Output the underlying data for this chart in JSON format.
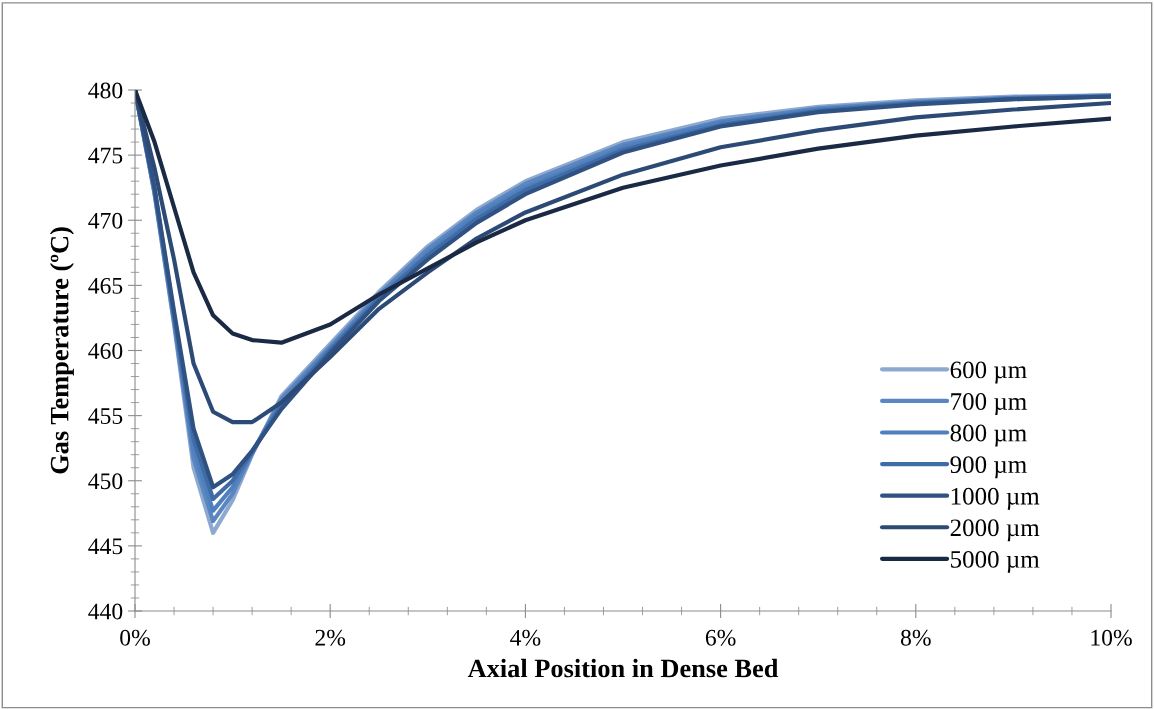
{
  "chart_data": {
    "type": "line",
    "xlabel": "Axial Position in Dense Bed",
    "ylabel": "Gas Temperature (ºC)",
    "x": [
      0,
      0.2,
      0.4,
      0.6,
      0.8,
      1.0,
      1.2,
      1.5,
      2.0,
      2.5,
      3.0,
      3.5,
      4,
      5,
      6,
      7,
      8,
      9,
      10
    ],
    "series": [
      {
        "name": "600 µm",
        "color": "#8ea9d0",
        "values": [
          480,
          472,
          462,
          451,
          446,
          448.5,
          452,
          456.5,
          460.5,
          464.5,
          468,
          470.8,
          473,
          476,
          477.8,
          478.7,
          479.2,
          479.5,
          479.6
        ]
      },
      {
        "name": "700 µm",
        "color": "#5b87c1",
        "values": [
          480,
          472.1,
          462.2,
          451.7,
          446.9,
          449,
          452.1,
          456.3,
          460.3,
          464.3,
          467.8,
          470.6,
          472.8,
          475.8,
          477.6,
          478.6,
          479.1,
          479.4,
          479.6
        ]
      },
      {
        "name": "800 µm",
        "color": "#4f7fbc",
        "values": [
          480,
          472.2,
          462.5,
          452.4,
          447.7,
          449.5,
          452.2,
          456,
          460.1,
          464.1,
          467.5,
          470.4,
          472.5,
          475.6,
          477.5,
          478.5,
          479,
          479.4,
          479.5
        ]
      },
      {
        "name": "900 µm",
        "color": "#3f6ca6",
        "values": [
          480,
          472.4,
          462.7,
          453.2,
          448.6,
          450,
          452.2,
          455.8,
          460,
          464,
          467.3,
          470.1,
          472.3,
          475.4,
          477.3,
          478.4,
          479,
          479.3,
          479.5
        ]
      },
      {
        "name": "1000 µm",
        "color": "#2f5283",
        "values": [
          480,
          472.5,
          463,
          454,
          449.5,
          450.5,
          452.3,
          455.5,
          459.8,
          463.8,
          467,
          469.8,
          472,
          475.2,
          477.2,
          478.3,
          478.9,
          479.3,
          479.5
        ]
      },
      {
        "name": "2000 µm",
        "color": "#2c4a75",
        "values": [
          480,
          474,
          467,
          459,
          455.3,
          454.5,
          454.5,
          456,
          459.5,
          463.2,
          466,
          468.6,
          470.6,
          473.5,
          475.6,
          476.9,
          477.9,
          478.5,
          479
        ]
      },
      {
        "name": "5000 µm",
        "color": "#1a2a44",
        "values": [
          480,
          476,
          471,
          466,
          462.7,
          461.3,
          460.8,
          460.6,
          462,
          464.3,
          466.3,
          468.3,
          470,
          472.5,
          474.2,
          475.5,
          476.5,
          477.2,
          477.8
        ]
      }
    ],
    "xlim": [
      0,
      10
    ],
    "xticks": [
      {
        "value": 0,
        "label": "0%"
      },
      {
        "value": 2,
        "label": "2%"
      },
      {
        "value": 4,
        "label": "4%"
      },
      {
        "value": 6,
        "label": "6%"
      },
      {
        "value": 8,
        "label": "8%"
      },
      {
        "value": 10,
        "label": "10%"
      }
    ],
    "ylim": [
      440,
      480
    ],
    "yticks": [
      440,
      445,
      450,
      455,
      460,
      465,
      470,
      475,
      480
    ],
    "grid": false,
    "legend": "bottom right",
    "marker": "none",
    "line_style": "solid"
  }
}
